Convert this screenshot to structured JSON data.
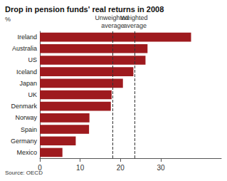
{
  "chart_data": {
    "type": "bar",
    "orientation": "horizontal",
    "title": "Drop in pension funds' real returns in 2008",
    "subtitle": "%",
    "source": "Source: OECD",
    "categories": [
      "Ireland",
      "Australia",
      "US",
      "Iceland",
      "Japan",
      "UK",
      "Denmark",
      "Norway",
      "Spain",
      "Germany",
      "Mexico"
    ],
    "values": [
      37.5,
      26.7,
      26.2,
      23.2,
      20.6,
      17.8,
      17.6,
      12.3,
      12.2,
      8.9,
      5.6
    ],
    "color": "#9e1a1e",
    "xlim": [
      0,
      45
    ],
    "xticks": [
      0,
      10,
      20,
      30
    ],
    "grid": false,
    "reference_lines": [
      {
        "label": "Unweighted average",
        "value": 18.1
      },
      {
        "label": "Weighted average",
        "value": 23.6
      }
    ]
  }
}
